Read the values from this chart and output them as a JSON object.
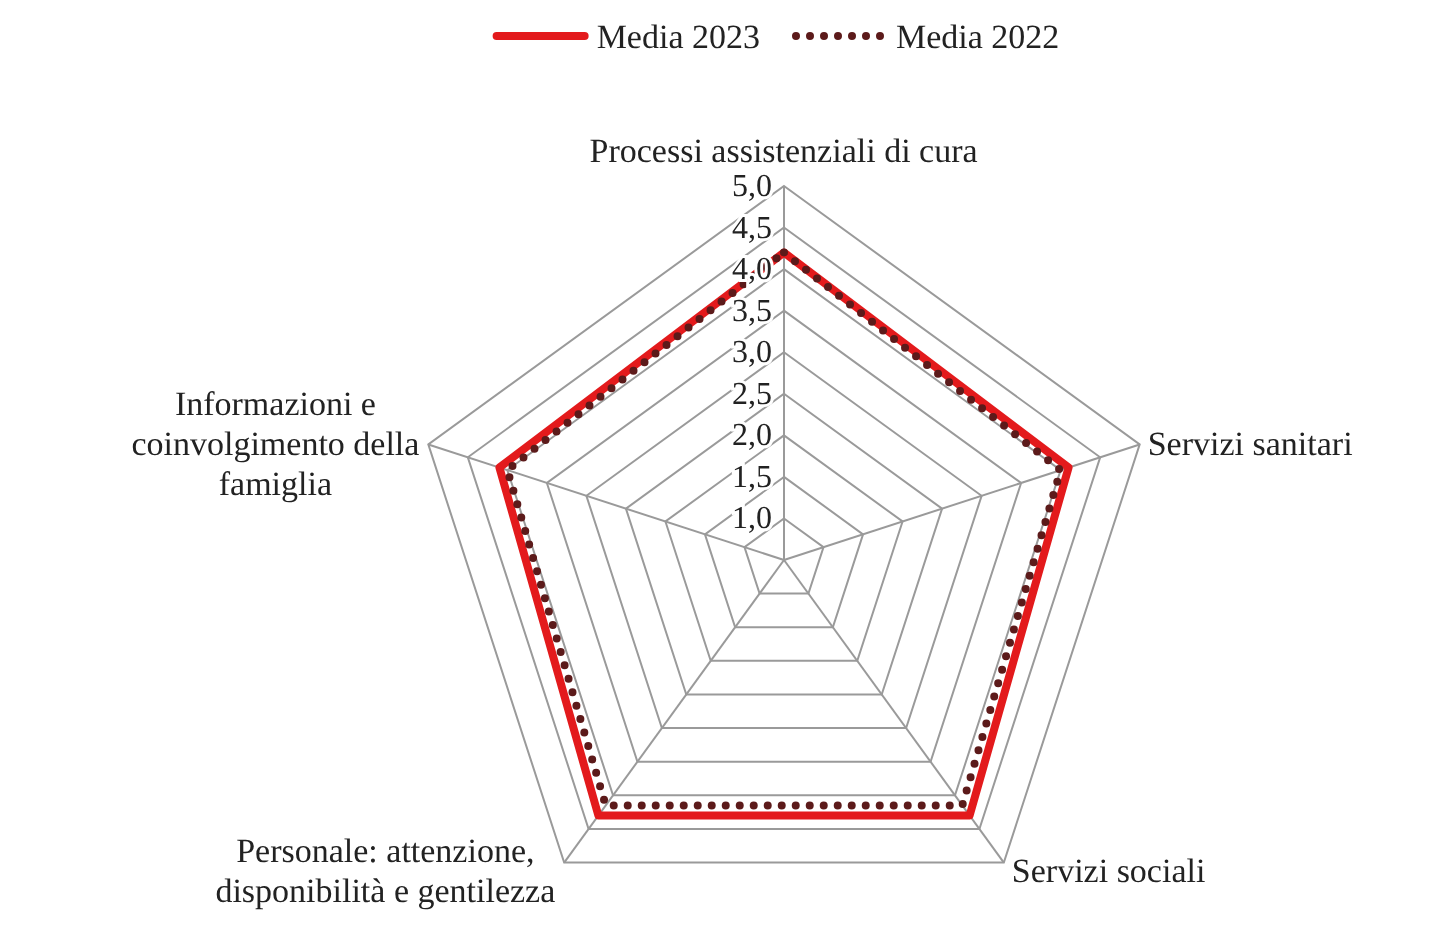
{
  "chart_data": {
    "type": "radar",
    "categories": [
      "Processi assistenziali di cura",
      "Servizi sanitari",
      "Servizi sociali",
      "Personale: attenzione, disponibilità e gentilezza",
      "Informazioni e coinvolgimento della famiglia"
    ],
    "series": [
      {
        "name": "Media 2023",
        "color": "#e31a1c",
        "line_style": "solid",
        "values": [
          4.2,
          4.1,
          4.3,
          4.3,
          4.1
        ]
      },
      {
        "name": "Media 2022",
        "color": "#5c1a1a",
        "line_style": "dotted",
        "values": [
          4.2,
          4.0,
          4.15,
          4.15,
          4.0
        ]
      }
    ],
    "ylim": [
      0.5,
      5
    ],
    "yticks": [
      {
        "value": 1,
        "label": "1,0"
      },
      {
        "value": 1.5,
        "label": "1,5"
      },
      {
        "value": 2,
        "label": "2,0"
      },
      {
        "value": 2.5,
        "label": "2,5"
      },
      {
        "value": 3,
        "label": "3,0"
      },
      {
        "value": 3.5,
        "label": "3,5"
      },
      {
        "value": 4,
        "label": "4,0"
      },
      {
        "value": 4.5,
        "label": "4,5"
      },
      {
        "value": 5,
        "label": "5,0"
      }
    ],
    "grid": true,
    "legend": "top"
  }
}
